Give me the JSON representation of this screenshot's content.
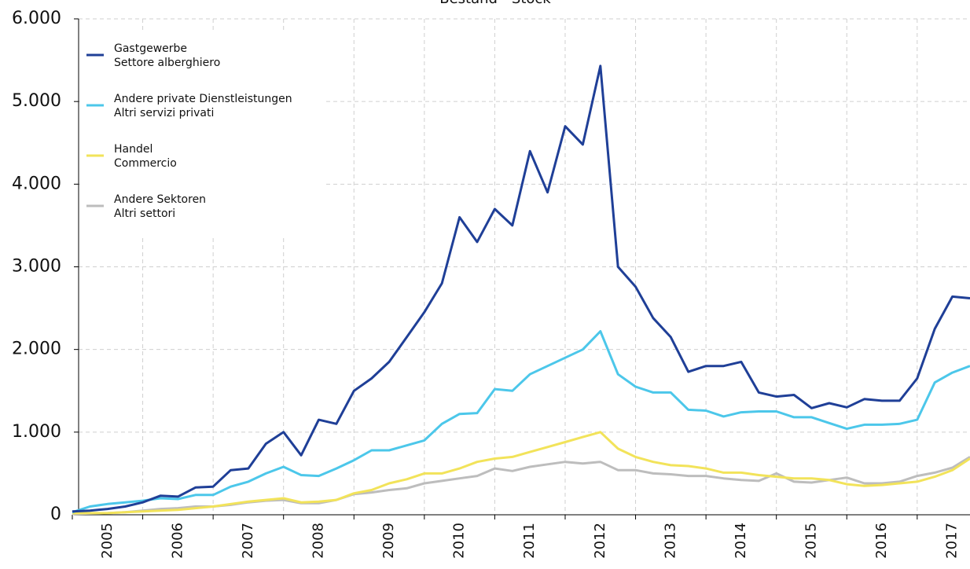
{
  "chart_data": {
    "type": "line",
    "title": "Bestand - Stock",
    "x": [
      2005,
      2005.25,
      2005.5,
      2005.75,
      2006,
      2006.25,
      2006.5,
      2006.75,
      2007,
      2007.25,
      2007.5,
      2007.75,
      2008,
      2008.25,
      2008.5,
      2008.75,
      2009,
      2009.25,
      2009.5,
      2009.75,
      2010,
      2010.25,
      2010.5,
      2010.75,
      2011,
      2011.25,
      2011.5,
      2011.75,
      2012,
      2012.25,
      2012.5,
      2012.75,
      2013,
      2013.25,
      2013.5,
      2013.75,
      2014,
      2014.25,
      2014.5,
      2014.75,
      2015,
      2015.25,
      2015.5,
      2015.75,
      2016,
      2016.25,
      2016.5,
      2016.75,
      2017,
      2017.25,
      2017.5,
      2017.75
    ],
    "series": [
      {
        "name": [
          "Gastgewerbe",
          "Settore alberghiero"
        ],
        "color": "#1f3f97",
        "values": [
          40,
          50,
          70,
          100,
          150,
          230,
          220,
          330,
          340,
          540,
          560,
          860,
          1000,
          720,
          1150,
          1100,
          1500,
          1650,
          1850,
          2150,
          2450,
          2800,
          3600,
          3300,
          3700,
          3500,
          4400,
          3900,
          4700,
          4480,
          5430,
          3000,
          2760,
          2380,
          2150,
          1730,
          1800,
          1800,
          1850,
          1480,
          1430,
          1450,
          1290,
          1350,
          1300,
          1400,
          1380,
          1380,
          1650,
          2250,
          2640,
          2620
        ]
      },
      {
        "name": [
          "Andere private Dienstleistungen",
          "Altri servizi privati"
        ],
        "color": "#4cc7ea",
        "values": [
          30,
          100,
          130,
          150,
          170,
          200,
          190,
          240,
          240,
          340,
          400,
          500,
          580,
          480,
          470,
          560,
          660,
          780,
          780,
          840,
          900,
          1100,
          1220,
          1230,
          1520,
          1500,
          1700,
          1800,
          1900,
          2000,
          2220,
          1700,
          1550,
          1480,
          1480,
          1270,
          1260,
          1190,
          1240,
          1250,
          1250,
          1180,
          1180,
          1110,
          1040,
          1090,
          1090,
          1100,
          1150,
          1600,
          1720,
          1800
        ]
      },
      {
        "name": [
          "Handel",
          "Commercio"
        ],
        "color": "#f2e35a",
        "values": [
          20,
          20,
          20,
          30,
          40,
          50,
          60,
          80,
          100,
          130,
          160,
          180,
          200,
          150,
          160,
          180,
          260,
          300,
          380,
          430,
          500,
          500,
          560,
          640,
          680,
          700,
          760,
          820,
          880,
          940,
          1000,
          800,
          700,
          640,
          600,
          590,
          560,
          510,
          510,
          480,
          460,
          440,
          440,
          420,
          370,
          350,
          360,
          380,
          400,
          460,
          540,
          680
        ]
      },
      {
        "name": [
          "Andere Sektoren",
          "Altri settori"
        ],
        "color": "#bdbdbd",
        "values": [
          10,
          15,
          20,
          30,
          50,
          70,
          80,
          100,
          100,
          120,
          150,
          170,
          180,
          140,
          140,
          180,
          250,
          270,
          300,
          320,
          380,
          410,
          440,
          470,
          560,
          530,
          580,
          610,
          640,
          620,
          640,
          540,
          540,
          500,
          490,
          470,
          470,
          440,
          420,
          410,
          500,
          400,
          390,
          420,
          450,
          380,
          380,
          400,
          470,
          510,
          570,
          700
        ]
      }
    ],
    "xlim": [
      2005,
      2017.75
    ],
    "xticks": [
      {
        "value": 2005,
        "label": "2005"
      },
      {
        "value": 2006,
        "label": "2006"
      },
      {
        "value": 2007,
        "label": "2007"
      },
      {
        "value": 2008,
        "label": "2008"
      },
      {
        "value": 2009,
        "label": "2009"
      },
      {
        "value": 2010,
        "label": "2010"
      },
      {
        "value": 2011,
        "label": "2011"
      },
      {
        "value": 2012,
        "label": "2012"
      },
      {
        "value": 2013,
        "label": "2013"
      },
      {
        "value": 2014,
        "label": "2014"
      },
      {
        "value": 2015,
        "label": "2015"
      },
      {
        "value": 2016,
        "label": "2016"
      },
      {
        "value": 2017,
        "label": "2017"
      }
    ],
    "ylim": [
      0,
      6000
    ],
    "yticks": [
      0,
      {
        "value": 1000,
        "label": "1.000"
      },
      {
        "value": 2000,
        "label": "2.000"
      },
      {
        "value": 3000,
        "label": "3.000"
      },
      {
        "value": 4000,
        "label": "4.000"
      },
      {
        "value": 5000,
        "label": "5.000"
      },
      {
        "value": 6000,
        "label": "6.000"
      }
    ],
    "grid": true,
    "legend": "upper left"
  }
}
